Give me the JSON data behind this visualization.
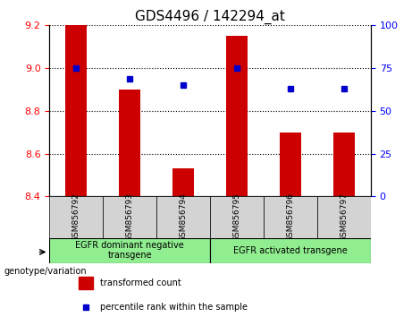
{
  "title": "GDS4496 / 142294_at",
  "samples": [
    "GSM856792",
    "GSM856793",
    "GSM856794",
    "GSM856795",
    "GSM856796",
    "GSM856797"
  ],
  "bar_values": [
    9.2,
    8.9,
    8.53,
    9.15,
    8.7,
    8.7
  ],
  "percentile_values": [
    75,
    69,
    65,
    75,
    63,
    63
  ],
  "bar_color": "#cc0000",
  "percentile_color": "#0000cc",
  "ylim_left": [
    8.4,
    9.2
  ],
  "ylim_right": [
    0,
    100
  ],
  "yticks_left": [
    8.4,
    8.6,
    8.8,
    9.0,
    9.2
  ],
  "yticks_right": [
    0,
    25,
    50,
    75,
    100
  ],
  "bar_width": 0.4,
  "group1_label": "EGFR dominant negative\ntransgene",
  "group2_label": "EGFR activated transgene",
  "group1_indices": [
    0,
    1,
    2
  ],
  "group2_indices": [
    3,
    4,
    5
  ],
  "legend_bar_label": "transformed count",
  "legend_point_label": "percentile rank within the sample",
  "genotype_label": "genotype/variation",
  "background_color": "#f0f0f0",
  "plot_bg_color": "#ffffff",
  "group_bg_color": "#90ee90",
  "x_positions": [
    1,
    2,
    3,
    4,
    5,
    6
  ]
}
